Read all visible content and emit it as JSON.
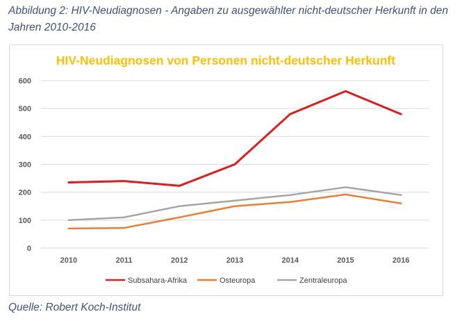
{
  "caption": "Abbildung 2: HIV-Neudiagnosen - Angaben zu ausgewählter nicht-deutscher Herkunft in den Jahren 2010-2016",
  "source": "Quelle: Robert Koch-Institut",
  "chart_data": {
    "type": "line",
    "title": "HIV-Neudiagnosen von Personen nicht-deutscher Herkunft",
    "xlabel": "",
    "ylabel": "",
    "categories": [
      "2010",
      "2011",
      "2012",
      "2013",
      "2014",
      "2015",
      "2016"
    ],
    "ylim": [
      0,
      600
    ],
    "yticks": [
      0,
      100,
      200,
      300,
      400,
      500,
      600
    ],
    "grid": true,
    "legend_position": "bottom",
    "title_color": "#ffc000",
    "series": [
      {
        "name": "Subsahara-Afrika",
        "color": "#e31a1c",
        "values": [
          235,
          240,
          223,
          300,
          480,
          562,
          480
        ]
      },
      {
        "name": "Osteuropa",
        "color": "#ed7d31",
        "values": [
          70,
          72,
          110,
          150,
          165,
          192,
          160
        ]
      },
      {
        "name": "Zentraleuropa",
        "color": "#a5a5a5",
        "values": [
          100,
          110,
          150,
          170,
          190,
          218,
          190
        ]
      }
    ]
  }
}
